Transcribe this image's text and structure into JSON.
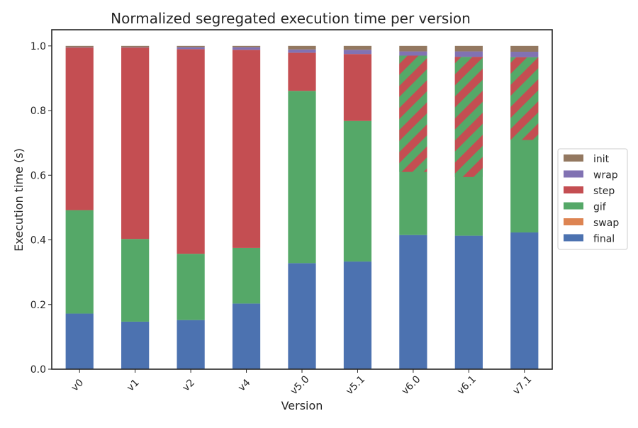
{
  "chart_data": {
    "type": "bar",
    "stacked": true,
    "title": "Normalized segregated execution time per version",
    "xlabel": "Version",
    "ylabel": "Execution time (s)",
    "ylim": [
      0,
      1.05
    ],
    "yticks": [
      0.0,
      0.2,
      0.4,
      0.6,
      0.8,
      1.0
    ],
    "ytick_labels": [
      "0.0",
      "0.2",
      "0.4",
      "0.6",
      "0.8",
      "1.0"
    ],
    "categories": [
      "v0",
      "v1",
      "v2",
      "v4",
      "v5.0",
      "v5.1",
      "v6.0",
      "v6.1",
      "v7.1"
    ],
    "legend_position": "center-right",
    "grid": false,
    "series": [
      {
        "name": "final",
        "color": "#4c72b0",
        "values": [
          0.172,
          0.147,
          0.152,
          0.203,
          0.328,
          0.333,
          0.415,
          0.413,
          0.423
        ]
      },
      {
        "name": "swap",
        "color": "#dd8452",
        "values": [
          0.0,
          0.0,
          0.0,
          0.0,
          0.0,
          0.0,
          0.0,
          0.0,
          0.0
        ]
      },
      {
        "name": "gif",
        "color": "#55a868",
        "values": [
          0.32,
          0.256,
          0.205,
          0.172,
          0.533,
          0.435,
          0.355,
          0.33,
          0.52
        ]
      },
      {
        "name": "step",
        "color": "#c44e52",
        "values": [
          0.503,
          0.592,
          0.633,
          0.613,
          0.118,
          0.207,
          0.2,
          0.223,
          0.022
        ]
      },
      {
        "name": "wrap",
        "color": "#8172b3",
        "values": [
          0.001,
          0.001,
          0.006,
          0.008,
          0.01,
          0.013,
          0.013,
          0.017,
          0.017
        ]
      },
      {
        "name": "init",
        "color": "#937860",
        "values": [
          0.004,
          0.004,
          0.004,
          0.004,
          0.011,
          0.012,
          0.017,
          0.017,
          0.018
        ]
      }
    ],
    "hatched_step_overlay": [
      false,
      false,
      false,
      false,
      false,
      false,
      true,
      true,
      true
    ]
  }
}
